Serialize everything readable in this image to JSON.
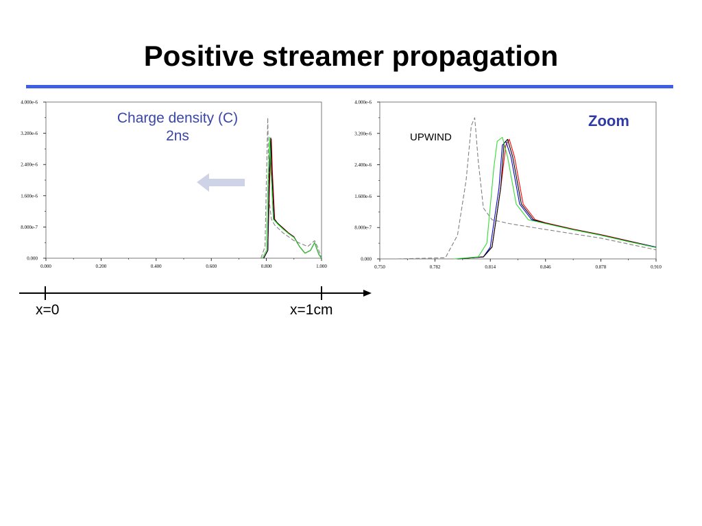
{
  "slide": {
    "title": "Positive streamer propagation",
    "axis_start_label": "x=0",
    "axis_end_label": "x=1cm",
    "accent_color": "#3c5fe4"
  },
  "chart_data": [
    {
      "type": "line",
      "caption_line1": "Charge density (C)",
      "caption_line2": "2ns",
      "arrow_direction": "left",
      "xlim": [
        0.0,
        1.0
      ],
      "ylim": [
        0.0,
        4e-06
      ],
      "xticks": [
        "0.000",
        "0.200",
        "0.400",
        "0.600",
        "0.800",
        "1.000"
      ],
      "yticks": [
        "0.000",
        "8.000e-7",
        "1.600e-6",
        "2.400e-6",
        "3.200e-6",
        "4.000e-6"
      ],
      "grid": false,
      "series": [
        {
          "color": "#808080",
          "dashed": true,
          "x": [
            0.78,
            0.795,
            0.8,
            0.805,
            0.81,
            0.818,
            0.83,
            0.86,
            0.9,
            0.95,
            0.975,
            0.985,
            1.0
          ],
          "y": [
            0,
            3e-07,
            2e-06,
            3.6e-06,
            1.5e-06,
            1e-06,
            8.5e-07,
            6.5e-07,
            4.5e-07,
            3e-07,
            4.5e-07,
            3e-07,
            0
          ]
        },
        {
          "color": "#ff0000",
          "dashed": false,
          "x": [
            0.79,
            0.805,
            0.812,
            0.818,
            0.822,
            0.83,
            0.84,
            0.86,
            0.88,
            0.9,
            0.92,
            0.94,
            0.96,
            0.975,
            0.99,
            1.0
          ],
          "y": [
            0,
            2e-07,
            2e-06,
            3.05e-06,
            2.2e-06,
            1e-06,
            9e-07,
            7.8e-07,
            6.5e-07,
            5.5e-07,
            3e-07,
            1.3e-07,
            2e-07,
            4e-07,
            1e-07,
            0
          ]
        },
        {
          "color": "#0000cc",
          "dashed": false,
          "x": [
            0.79,
            0.805,
            0.81,
            0.816,
            0.82,
            0.828,
            0.84,
            0.86,
            0.88,
            0.9,
            0.92,
            0.94,
            0.96,
            0.975,
            0.99,
            1.0
          ],
          "y": [
            0,
            2e-07,
            2e-06,
            3e-06,
            2.2e-06,
            1e-06,
            9e-07,
            7.6e-07,
            6.4e-07,
            5.4e-07,
            3e-07,
            1.3e-07,
            2e-07,
            4e-07,
            1e-07,
            0
          ]
        },
        {
          "color": "#000000",
          "dashed": false,
          "x": [
            0.79,
            0.805,
            0.81,
            0.816,
            0.82,
            0.828,
            0.84,
            0.86,
            0.88,
            0.9,
            0.92,
            0.94,
            0.96,
            0.975,
            0.99,
            1.0
          ],
          "y": [
            0,
            2e-07,
            2e-06,
            3.08e-06,
            2.2e-06,
            1e-06,
            9e-07,
            7.7e-07,
            6.4e-07,
            5.4e-07,
            3e-07,
            1.3e-07,
            2e-07,
            4e-07,
            1e-07,
            0
          ]
        },
        {
          "color": "#33dd33",
          "dashed": false,
          "x": [
            0.785,
            0.8,
            0.806,
            0.812,
            0.817,
            0.825,
            0.84,
            0.86,
            0.88,
            0.9,
            0.92,
            0.94,
            0.96,
            0.975,
            0.99,
            1.0
          ],
          "y": [
            0,
            2e-07,
            2e-06,
            3.1e-06,
            2.2e-06,
            1e-06,
            8.8e-07,
            7.5e-07,
            6.3e-07,
            5.3e-07,
            3e-07,
            1.3e-07,
            2e-07,
            4e-07,
            1e-07,
            0
          ]
        }
      ]
    },
    {
      "type": "line",
      "badge": "Zoom",
      "annotation": "UPWIND",
      "xlim": [
        0.75,
        0.91
      ],
      "ylim": [
        0.0,
        4e-06
      ],
      "xticks": [
        "0.750",
        "0.782",
        "0.814",
        "0.846",
        "0.878",
        "0.910"
      ],
      "yticks": [
        "0.000",
        "8.000e-7",
        "1.600e-6",
        "2.400e-6",
        "3.200e-6",
        "4.000e-6"
      ],
      "grid": false,
      "series": [
        {
          "color": "#808080",
          "dashed": true,
          "x": [
            0.76,
            0.788,
            0.795,
            0.8,
            0.803,
            0.805,
            0.807,
            0.81,
            0.815,
            0.825,
            0.846,
            0.878,
            0.91
          ],
          "y": [
            0,
            3e-08,
            6e-07,
            2e-06,
            3.4e-06,
            3.6e-06,
            2.5e-06,
            1.3e-06,
            1e-06,
            9e-07,
            7.5e-07,
            5.3e-07,
            2.3e-07
          ]
        },
        {
          "color": "#ff0000",
          "dashed": false,
          "x": [
            0.795,
            0.81,
            0.815,
            0.82,
            0.823,
            0.825,
            0.828,
            0.833,
            0.84,
            0.846,
            0.862,
            0.878,
            0.894,
            0.91
          ],
          "y": [
            0,
            5e-08,
            3e-07,
            1.8e-06,
            2.9e-06,
            3.05e-06,
            2.6e-06,
            1.4e-06,
            1e-06,
            9.2e-07,
            7.6e-07,
            6.2e-07,
            4.6e-07,
            3e-07
          ]
        },
        {
          "color": "#0000cc",
          "dashed": false,
          "x": [
            0.795,
            0.81,
            0.814,
            0.819,
            0.821,
            0.823,
            0.826,
            0.831,
            0.838,
            0.846,
            0.862,
            0.878,
            0.894,
            0.91
          ],
          "y": [
            0,
            5e-08,
            3e-07,
            1.8e-06,
            2.9e-06,
            3e-06,
            2.6e-06,
            1.4e-06,
            1e-06,
            9.1e-07,
            7.5e-07,
            6.1e-07,
            4.5e-07,
            3e-07
          ]
        },
        {
          "color": "#000000",
          "dashed": false,
          "x": [
            0.795,
            0.81,
            0.815,
            0.82,
            0.822,
            0.824,
            0.827,
            0.832,
            0.839,
            0.846,
            0.862,
            0.878,
            0.894,
            0.91
          ],
          "y": [
            0,
            5e-08,
            3e-07,
            1.8e-06,
            2.95e-06,
            3.05e-06,
            2.6e-06,
            1.4e-06,
            1e-06,
            9.1e-07,
            7.5e-07,
            6.1e-07,
            4.5e-07,
            2.9e-07
          ]
        },
        {
          "color": "#33dd33",
          "dashed": false,
          "x": [
            0.793,
            0.807,
            0.812,
            0.816,
            0.818,
            0.821,
            0.824,
            0.829,
            0.836,
            0.846,
            0.862,
            0.878,
            0.894,
            0.91
          ],
          "y": [
            0,
            5e-08,
            4e-07,
            2.3e-06,
            3e-06,
            3.1e-06,
            2.6e-06,
            1.4e-06,
            1e-06,
            9e-07,
            7.4e-07,
            6e-07,
            4.4e-07,
            2.9e-07
          ]
        }
      ]
    }
  ]
}
